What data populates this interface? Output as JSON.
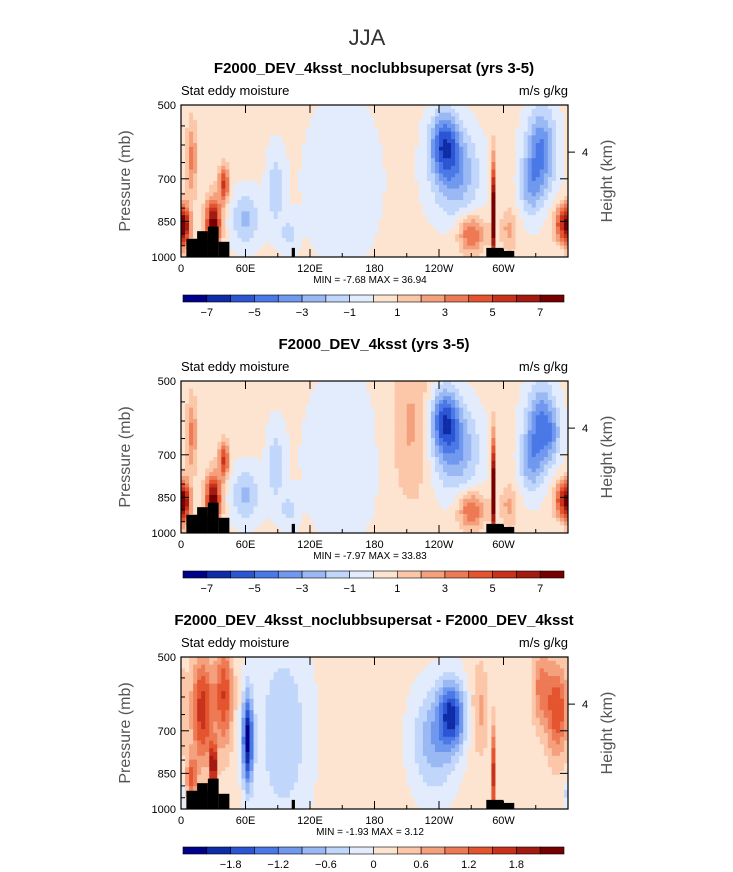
{
  "figure_title": "JJA",
  "chart_data": [
    {
      "type": "heatmap",
      "title": "F2000_DEV_4ksst_noclubbsupersat (yrs 3-5)",
      "left_label": "Stat eddy moisture",
      "right_label": "m/s g/kg",
      "ylabel": "Pressure (mb)",
      "ylabel_right": "Height (km)",
      "y_ticks": [
        "500",
        "700",
        "850",
        "1000"
      ],
      "y_right_ticks": [
        "4"
      ],
      "x_ticks": [
        "0",
        "60E",
        "120E",
        "180",
        "120W",
        "60W"
      ],
      "stats": "MIN =   -7.68   MAX =   36.94",
      "colorbar_labels": [
        "-7",
        "-5",
        "-3",
        "-1",
        "1",
        "3",
        "5",
        "7"
      ],
      "value_range": [
        -8,
        8
      ]
    },
    {
      "type": "heatmap",
      "title": "F2000_DEV_4ksst (yrs 3-5)",
      "left_label": "Stat eddy moisture",
      "right_label": "m/s g/kg",
      "ylabel": "Pressure (mb)",
      "ylabel_right": "Height (km)",
      "y_ticks": [
        "500",
        "700",
        "850",
        "1000"
      ],
      "y_right_ticks": [
        "4"
      ],
      "x_ticks": [
        "0",
        "60E",
        "120E",
        "180",
        "120W",
        "60W"
      ],
      "stats": "MIN =   -7.97   MAX =   33.83",
      "colorbar_labels": [
        "-7",
        "-5",
        "-3",
        "-1",
        "1",
        "3",
        "5",
        "7"
      ],
      "value_range": [
        -8,
        8
      ]
    },
    {
      "type": "heatmap",
      "title": "F2000_DEV_4ksst_noclubbsupersat - F2000_DEV_4ksst",
      "left_label": "Stat eddy moisture",
      "right_label": "m/s g/kg",
      "ylabel": "Pressure (mb)",
      "ylabel_right": "Height (km)",
      "y_ticks": [
        "500",
        "700",
        "850",
        "1000"
      ],
      "y_right_ticks": [
        "4"
      ],
      "x_ticks": [
        "0",
        "60E",
        "120E",
        "180",
        "120W",
        "60W"
      ],
      "stats": "MIN =   -1.93   MAX =   3.12",
      "colorbar_labels": [
        "-1.8",
        "-1.2",
        "-0.6",
        "0",
        "0.6",
        "1.2",
        "1.8"
      ],
      "value_range": [
        -2.1,
        2.1
      ]
    }
  ],
  "colormap": [
    "#00008b",
    "#0f2ca8",
    "#2c55d4",
    "#4a78e6",
    "#6f98ee",
    "#99b8f4",
    "#c1d6fb",
    "#e2ecfd",
    "#fde4d0",
    "#fbc7a8",
    "#f5a07c",
    "#ee7a55",
    "#e4542f",
    "#c8321b",
    "#a31b10",
    "#760000"
  ]
}
